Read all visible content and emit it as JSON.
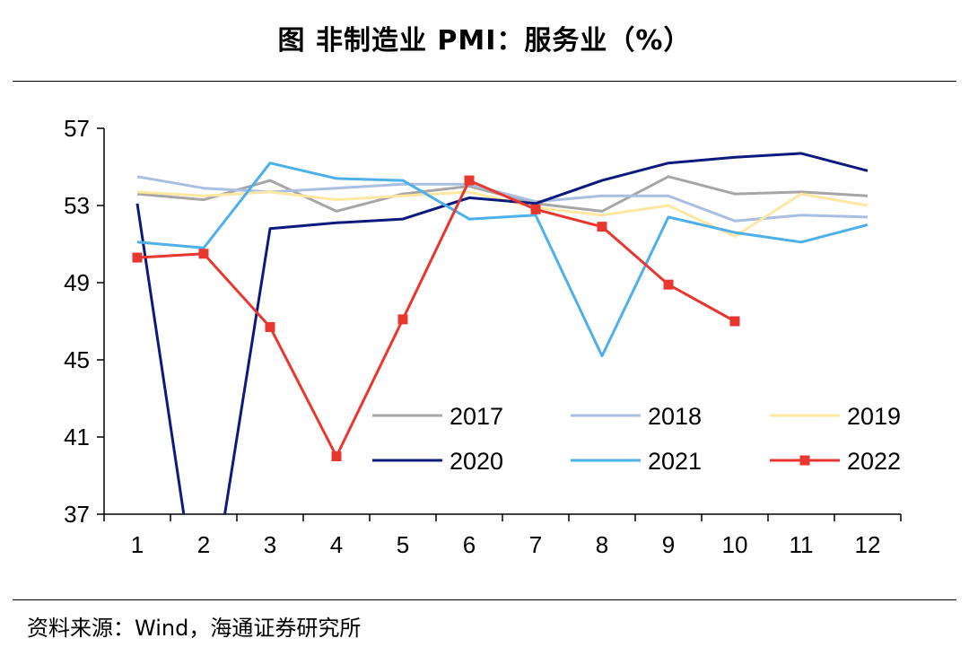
{
  "title": "图  非制造业 PMI：服务业（%）",
  "source": "资料来源：Wind，海通证券研究所",
  "chart_data": {
    "type": "line",
    "title": "非制造业 PMI：服务业（%）",
    "xlabel": "",
    "ylabel": "",
    "categories": [
      "1",
      "2",
      "3",
      "4",
      "5",
      "6",
      "7",
      "8",
      "9",
      "10",
      "11",
      "12"
    ],
    "ylim": [
      37,
      57
    ],
    "yticks": [
      "57",
      "53",
      "49",
      "45",
      "41",
      "37"
    ],
    "ytick_values": [
      57,
      53,
      49,
      45,
      41,
      37
    ],
    "legend_position": "bottom-right",
    "series": [
      {
        "name": "2017",
        "color": "#a6a6a6",
        "marker": "none",
        "values": [
          53.6,
          53.3,
          54.3,
          52.7,
          53.6,
          54.0,
          53.1,
          52.7,
          54.5,
          53.6,
          53.7,
          53.5
        ]
      },
      {
        "name": "2018",
        "color": "#a9bee0",
        "marker": "none",
        "values": [
          54.5,
          53.9,
          53.7,
          53.9,
          54.1,
          54.1,
          53.2,
          53.5,
          53.5,
          52.2,
          52.5,
          52.4
        ]
      },
      {
        "name": "2019",
        "color": "#fde7a1",
        "marker": "none",
        "values": [
          53.7,
          53.5,
          53.7,
          53.3,
          53.5,
          53.7,
          52.9,
          52.5,
          53.0,
          51.4,
          53.6,
          53.0
        ]
      },
      {
        "name": "2020",
        "color": "#0c1a7d",
        "marker": "none",
        "values": [
          53.1,
          30.1,
          51.8,
          52.1,
          52.3,
          53.4,
          53.1,
          54.3,
          55.2,
          55.5,
          55.7,
          54.8
        ]
      },
      {
        "name": "2021",
        "color": "#4db0ea",
        "marker": "none",
        "values": [
          51.1,
          50.8,
          55.2,
          54.4,
          54.3,
          52.3,
          52.5,
          45.2,
          52.4,
          51.6,
          51.1,
          52.0
        ]
      },
      {
        "name": "2022",
        "color": "#e8372e",
        "marker": "square",
        "values": [
          50.3,
          50.5,
          46.7,
          40.0,
          47.1,
          54.3,
          52.8,
          51.9,
          48.9,
          47.0,
          null,
          null
        ]
      }
    ]
  }
}
